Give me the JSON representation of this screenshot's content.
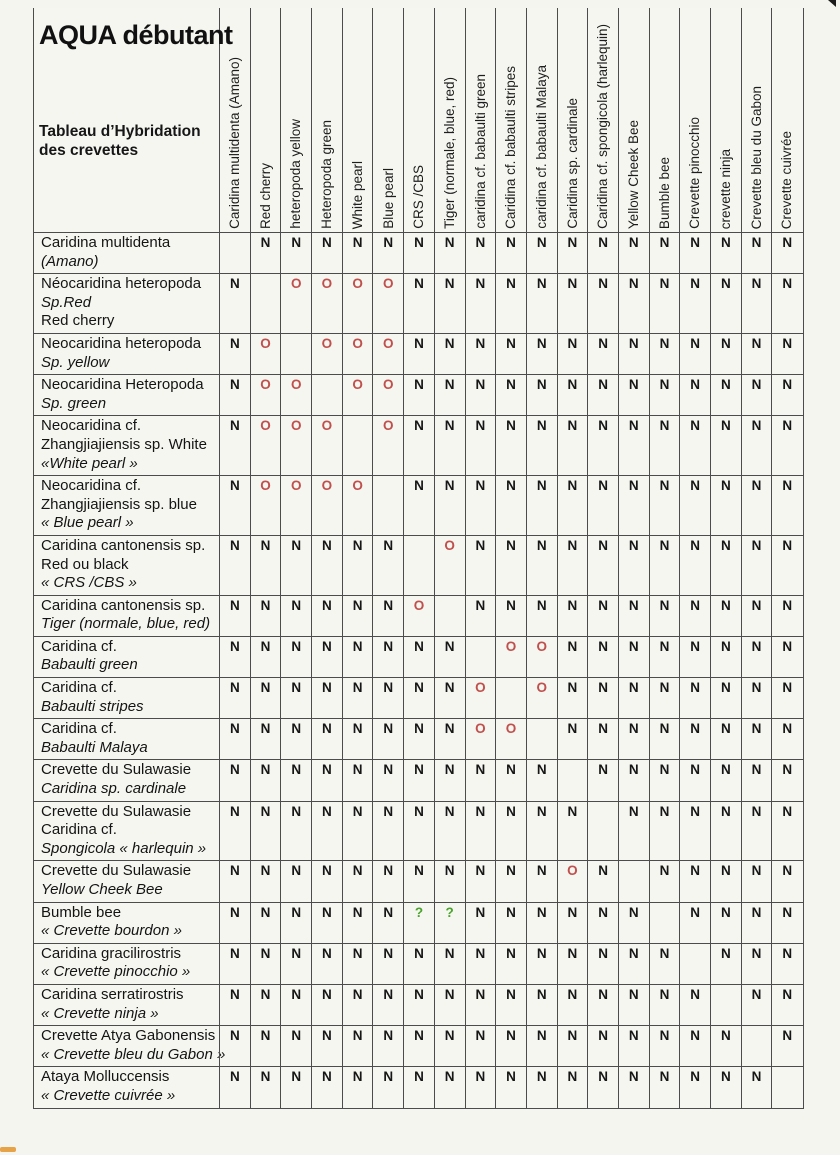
{
  "header": {
    "title": "AQUA débutant",
    "subtitle_lines": [
      "Tableau d’Hybridation",
      "des crevettes"
    ]
  },
  "table": {
    "value_colors": {
      "N": "#161616",
      "O": "#c0504d",
      "?": "#4aa32c"
    },
    "columns": [
      "Caridina multidenta (Amano)",
      "Red cherry",
      "heteropoda  yellow",
      "Heteropoda green",
      "White pearl",
      "Blue pearl",
      "CRS /CBS",
      "Tiger (normale, blue, red)",
      "caridina cf. babaulti green",
      "Caridina cf. babaulti stripes",
      "caridina cf. babaulti Malaya",
      "Caridina sp. cardinale",
      "Caridina cf. spongicola (harlequin)",
      "Yellow Cheek Bee",
      "Bumble bee",
      "Crevette pinocchio",
      "crevette  ninja",
      "Crevette bleu du Gabon",
      "Crevette cuivrée"
    ],
    "rows": [
      {
        "label_lines": [
          {
            "t": "Caridina multidenta",
            "i": false
          },
          {
            "t": "(Amano)",
            "i": true
          }
        ],
        "cells": [
          "",
          "N",
          "N",
          "N",
          "N",
          "N",
          "N",
          "N",
          "N",
          "N",
          "N",
          "N",
          "N",
          "N",
          "N",
          "N",
          "N",
          "N",
          "N"
        ]
      },
      {
        "label_lines": [
          {
            "t": "Néocaridina heteropoda",
            "i": false
          },
          {
            "t": "Sp.Red",
            "i": true
          },
          {
            "t": "Red cherry",
            "i": false
          }
        ],
        "cells": [
          "N",
          "",
          "O",
          "O",
          "O",
          "O",
          "N",
          "N",
          "N",
          "N",
          "N",
          "N",
          "N",
          "N",
          "N",
          "N",
          "N",
          "N",
          "N"
        ]
      },
      {
        "label_lines": [
          {
            "t": "Neocaridina heteropoda",
            "i": false
          },
          {
            "t": "Sp. yellow",
            "i": true
          }
        ],
        "cells": [
          "N",
          "O",
          "",
          "O",
          "O",
          "O",
          "N",
          "N",
          "N",
          "N",
          "N",
          "N",
          "N",
          "N",
          "N",
          "N",
          "N",
          "N",
          "N"
        ]
      },
      {
        "label_lines": [
          {
            "t": "Neocaridina Heteropoda",
            "i": false
          },
          {
            "t": "Sp. green",
            "i": true
          }
        ],
        "cells": [
          "N",
          "O",
          "O",
          "",
          "O",
          "O",
          "N",
          "N",
          "N",
          "N",
          "N",
          "N",
          "N",
          "N",
          "N",
          "N",
          "N",
          "N",
          "N"
        ]
      },
      {
        "label_lines": [
          {
            "t": "Neocaridina cf.",
            "i": false
          },
          {
            "t": "Zhangjiajiensis sp. White",
            "i": false
          },
          {
            "t": "«White pearl »",
            "i": true
          }
        ],
        "cells": [
          "N",
          "O",
          "O",
          "O",
          "",
          "O",
          "N",
          "N",
          "N",
          "N",
          "N",
          "N",
          "N",
          "N",
          "N",
          "N",
          "N",
          "N",
          "N"
        ]
      },
      {
        "label_lines": [
          {
            "t": "Neocaridina cf.",
            "i": false
          },
          {
            "t": "Zhangjiajiensis sp. blue",
            "i": false
          },
          {
            "t": "« Blue pearl »",
            "i": true
          }
        ],
        "cells": [
          "N",
          "O",
          "O",
          "O",
          "O",
          "",
          "N",
          "N",
          "N",
          "N",
          "N",
          "N",
          "N",
          "N",
          "N",
          "N",
          "N",
          "N",
          "N"
        ]
      },
      {
        "label_lines": [
          {
            "t": "Caridina cantonensis sp.",
            "i": false
          },
          {
            "t": "Red ou black",
            "i": false
          },
          {
            "t": "« CRS /CBS »",
            "i": true
          }
        ],
        "cells": [
          "N",
          "N",
          "N",
          "N",
          "N",
          "N",
          "",
          "O",
          "N",
          "N",
          "N",
          "N",
          "N",
          "N",
          "N",
          "N",
          "N",
          "N",
          "N"
        ]
      },
      {
        "label_lines": [
          {
            "t": "Caridina cantonensis sp.",
            "i": false
          },
          {
            "t": "Tiger (normale, blue, red)",
            "i": true
          }
        ],
        "cells": [
          "N",
          "N",
          "N",
          "N",
          "N",
          "N",
          "O",
          "",
          "N",
          "N",
          "N",
          "N",
          "N",
          "N",
          "N",
          "N",
          "N",
          "N",
          "N"
        ]
      },
      {
        "label_lines": [
          {
            "t": "Caridina cf.",
            "i": false
          },
          {
            "t": "Babaulti  green",
            "i": true
          }
        ],
        "cells": [
          "N",
          "N",
          "N",
          "N",
          "N",
          "N",
          "N",
          "N",
          "",
          "O",
          "O",
          "N",
          "N",
          "N",
          "N",
          "N",
          "N",
          "N",
          "N"
        ]
      },
      {
        "label_lines": [
          {
            "t": "Caridina cf.",
            "i": false
          },
          {
            "t": "Babaulti stripes",
            "i": true
          }
        ],
        "cells": [
          "N",
          "N",
          "N",
          "N",
          "N",
          "N",
          "N",
          "N",
          "O",
          "",
          "O",
          "N",
          "N",
          "N",
          "N",
          "N",
          "N",
          "N",
          "N"
        ]
      },
      {
        "label_lines": [
          {
            "t": "Caridina cf.",
            "i": false
          },
          {
            "t": "Babaulti Malaya",
            "i": true
          }
        ],
        "cells": [
          "N",
          "N",
          "N",
          "N",
          "N",
          "N",
          "N",
          "N",
          "O",
          "O",
          "",
          "N",
          "N",
          "N",
          "N",
          "N",
          "N",
          "N",
          "N"
        ]
      },
      {
        "label_lines": [
          {
            "t": "Crevette du Sulawasie",
            "i": false
          },
          {
            "t": "Caridina sp. cardinale",
            "i": true
          }
        ],
        "cells": [
          "N",
          "N",
          "N",
          "N",
          "N",
          "N",
          "N",
          "N",
          "N",
          "N",
          "N",
          "",
          "N",
          "N",
          "N",
          "N",
          "N",
          "N",
          "N"
        ]
      },
      {
        "label_lines": [
          {
            "t": "Crevette du Sulawasie",
            "i": false
          },
          {
            "t": "Caridina cf.",
            "i": false
          },
          {
            "t": "Spongicola « harlequin »",
            "i": true
          }
        ],
        "cells": [
          "N",
          "N",
          "N",
          "N",
          "N",
          "N",
          "N",
          "N",
          "N",
          "N",
          "N",
          "N",
          "",
          "N",
          "N",
          "N",
          "N",
          "N",
          "N"
        ]
      },
      {
        "label_lines": [
          {
            "t": "Crevette du Sulawasie",
            "i": false
          },
          {
            "t": "Yellow Cheek Bee",
            "i": true
          }
        ],
        "cells": [
          "N",
          "N",
          "N",
          "N",
          "N",
          "N",
          "N",
          "N",
          "N",
          "N",
          "N",
          "O",
          "N",
          "",
          "N",
          "N",
          "N",
          "N",
          "N"
        ]
      },
      {
        "label_lines": [
          {
            "t": "Bumble bee",
            "i": false
          },
          {
            "t": "« Crevette bourdon »",
            "i": true
          }
        ],
        "cells": [
          "N",
          "N",
          "N",
          "N",
          "N",
          "N",
          "?",
          "?",
          "N",
          "N",
          "N",
          "N",
          "N",
          "N",
          "",
          "N",
          "N",
          "N",
          "N"
        ]
      },
      {
        "label_lines": [
          {
            "t": "Caridina gracilirostris",
            "i": false
          },
          {
            "t": "« Crevette pinocchio »",
            "i": true
          }
        ],
        "cells": [
          "N",
          "N",
          "N",
          "N",
          "N",
          "N",
          "N",
          "N",
          "N",
          "N",
          "N",
          "N",
          "N",
          "N",
          "N",
          "",
          "N",
          "N",
          "N"
        ]
      },
      {
        "label_lines": [
          {
            "t": "Caridina serratirostris",
            "i": false
          },
          {
            "t": "« Crevette  ninja »",
            "i": true
          }
        ],
        "cells": [
          "N",
          "N",
          "N",
          "N",
          "N",
          "N",
          "N",
          "N",
          "N",
          "N",
          "N",
          "N",
          "N",
          "N",
          "N",
          "N",
          "",
          "N",
          "N"
        ]
      },
      {
        "label_lines": [
          {
            "t": "Crevette Atya Gabonensis",
            "i": false
          },
          {
            "t": "« Crevette bleu du Gabon »",
            "i": true
          }
        ],
        "cells": [
          "N",
          "N",
          "N",
          "N",
          "N",
          "N",
          "N",
          "N",
          "N",
          "N",
          "N",
          "N",
          "N",
          "N",
          "N",
          "N",
          "N",
          "",
          "N"
        ]
      },
      {
        "label_lines": [
          {
            "t": "Ataya Molluccensis",
            "i": false
          },
          {
            "t": "« Crevette cuivrée »",
            "i": true
          }
        ],
        "cells": [
          "N",
          "N",
          "N",
          "N",
          "N",
          "N",
          "N",
          "N",
          "N",
          "N",
          "N",
          "N",
          "N",
          "N",
          "N",
          "N",
          "N",
          "N",
          ""
        ]
      }
    ]
  }
}
